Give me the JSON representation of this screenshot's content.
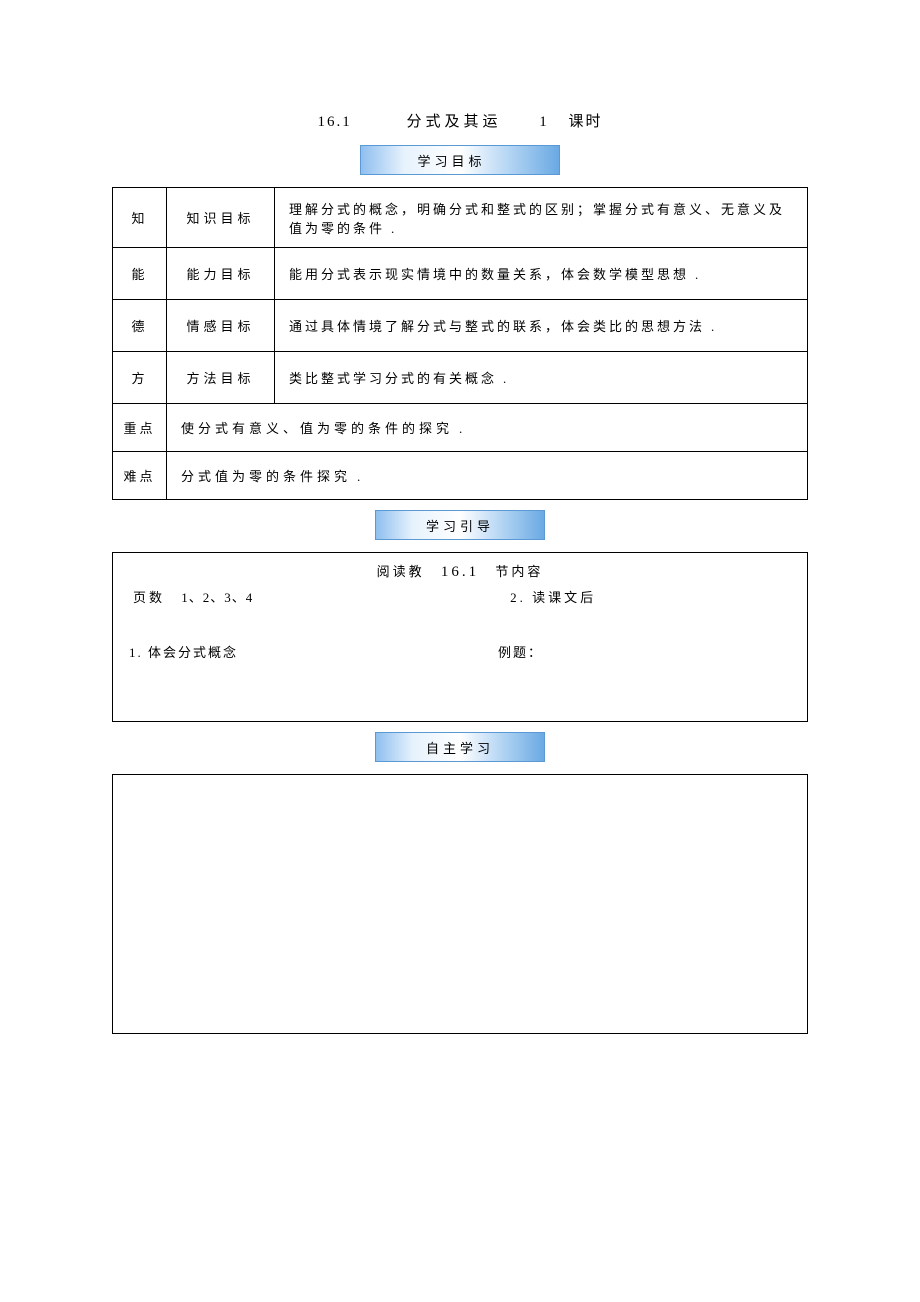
{
  "colors": {
    "border": "#000000",
    "badge_gradient": [
      "#8fbfef",
      "#e7f2fc",
      "#ffffff",
      "#bcdaf5",
      "#6aa9e4"
    ],
    "badge_border": "#5a99d4",
    "background": "#ffffff",
    "text": "#000000"
  },
  "typography": {
    "body_font": "SimSun",
    "title_fontsize_pt": 11,
    "body_fontsize_pt": 10
  },
  "title": {
    "section_no": "16.1",
    "label": "　分式及其运",
    "count": "1",
    "unit": "课时"
  },
  "badges": {
    "goals": "学习目标　",
    "guide": "学习引导",
    "self": "自主学习"
  },
  "goals_table": {
    "rows": [
      {
        "idx": "知",
        "cat": "知识目标",
        "desc": "理解分式的概念，明确分式和整式的区别；掌握分式有意义、无意义及值为零的条件",
        "dot": "."
      },
      {
        "idx": "能",
        "cat": "能力目标",
        "desc": "能用分式表示现实情境中的数量关系，体会数学模型思想",
        "dot": "."
      },
      {
        "idx": "德",
        "cat": "情感目标",
        "desc": "通过具体情境了解分式与整式的联系，体会类比的思想方法",
        "dot": "."
      },
      {
        "idx": "方",
        "cat": "方法目标",
        "desc": "类比整式学习分式的有关概念",
        "dot": "."
      }
    ],
    "span_rows": [
      {
        "key": "重点",
        "text": "使分式有意义、值为零的条件的探究",
        "dot": "."
      },
      {
        "key": "难点",
        "text": "分式值为零的条件探究",
        "dot": "."
      }
    ]
  },
  "guide_box": {
    "line1": {
      "pre": "阅读教",
      "chap": "16.1",
      "post": "节内容"
    },
    "left_label": "页数",
    "nums": "1、2、3、4",
    "mid": "2. 读课文后",
    "s1": "1. 体会分式概念",
    "s2": "例题："
  }
}
